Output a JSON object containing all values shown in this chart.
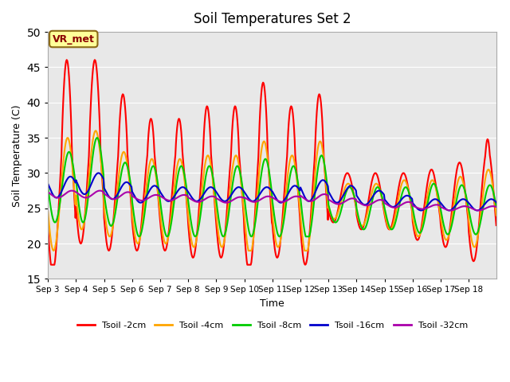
{
  "title": "Soil Temperatures Set 2",
  "xlabel": "Time",
  "ylabel": "Soil Temperature (C)",
  "ylim": [
    15,
    50
  ],
  "yticks": [
    15,
    20,
    25,
    30,
    35,
    40,
    45,
    50
  ],
  "xtick_labels": [
    "Sep 3",
    "Sep 4",
    "Sep 5",
    "Sep 6",
    "Sep 7",
    "Sep 8",
    "Sep 9",
    "Sep 10",
    "Sep 11",
    "Sep 12",
    "Sep 13",
    "Sep 14",
    "Sep 15",
    "Sep 16",
    "Sep 17",
    "Sep 18"
  ],
  "annotation_text": "VR_met",
  "annotation_color": "#8B0000",
  "annotation_bg": "#FFFF99",
  "bg_color": "#E8E8E8",
  "colors": {
    "Tsoil -2cm": "#FF0000",
    "Tsoil -4cm": "#FFA500",
    "Tsoil -8cm": "#00CC00",
    "Tsoil -16cm": "#0000CC",
    "Tsoil -32cm": "#AA00AA"
  },
  "linewidth": 1.5
}
